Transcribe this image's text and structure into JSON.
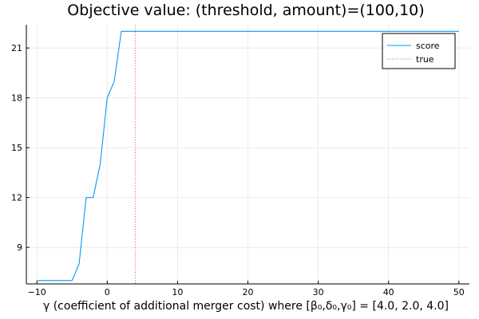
{
  "chart_data": {
    "type": "line",
    "title": "Objective value: (threshold, amount)=(100,10)",
    "xlabel": "γ (coefficient of additional merger cost) where [β₀,δ₀,γ₀] = [4.0, 2.0, 4.0]",
    "ylabel": "",
    "xlim": [
      -11.5,
      51.5
    ],
    "ylim": [
      6.8,
      22.4
    ],
    "xticks": [
      -10,
      0,
      10,
      20,
      30,
      40,
      50
    ],
    "yticks": [
      9,
      12,
      15,
      18,
      21
    ],
    "grid": true,
    "legend_position": "top-right",
    "series": [
      {
        "name": "score",
        "color": "#009af9",
        "style": "solid",
        "x": [
          -10,
          -9,
          -8,
          -7,
          -6,
          -5,
          -4,
          -3,
          -2,
          -1,
          0,
          1,
          2,
          3,
          4,
          5,
          10,
          20,
          30,
          40,
          50
        ],
        "y": [
          7,
          7,
          7,
          7,
          7,
          7,
          8,
          12,
          12,
          14,
          18,
          19,
          22,
          22,
          22,
          22,
          22,
          22,
          22,
          22,
          22
        ]
      },
      {
        "name": "true",
        "color": "#e26f46",
        "style": "dotted",
        "vline_x": 4
      }
    ]
  }
}
